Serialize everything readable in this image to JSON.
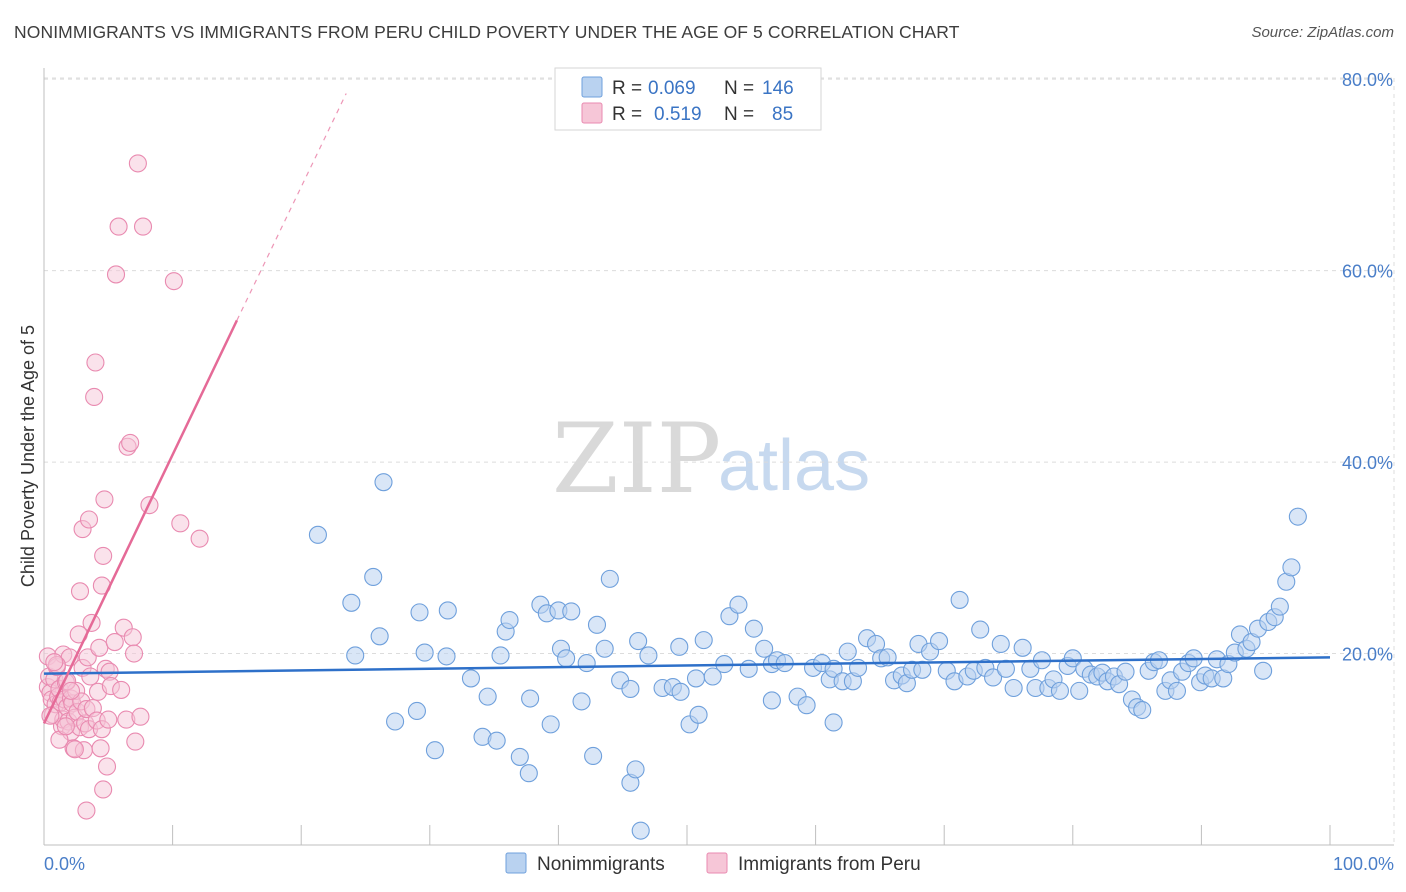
{
  "title": "NONIMMIGRANTS VS IMMIGRANTS FROM PERU CHILD POVERTY UNDER THE AGE OF 5 CORRELATION CHART",
  "source": "Source: ZipAtlas.com",
  "watermark": {
    "zip": "ZIP",
    "atlas": "atlas"
  },
  "colors": {
    "nonimmigrants": "#6fa0dc",
    "nonimmigrants_fill": "#b9d2f0",
    "peru": "#e98ab0",
    "peru_fill": "#f6c6d7",
    "blue_line": "#2e70c9",
    "pink_line": "#e56a97",
    "tick": "#4a7ec8"
  },
  "legend": {
    "r_label": "R =",
    "n_label": "N =",
    "series": [
      {
        "r": "0.069",
        "n": "146"
      },
      {
        "r": "0.519",
        "n": "85"
      }
    ]
  },
  "chart_data": {
    "type": "scatter",
    "title": "NONIMMIGRANTS VS IMMIGRANTS FROM PERU CHILD POVERTY UNDER THE AGE OF 5 CORRELATION CHART",
    "xlabel": "",
    "ylabel": "Child Poverty Under the Age of 5",
    "xlim": [
      0,
      100
    ],
    "ylim": [
      0,
      82
    ],
    "x_tick_labels": [
      "0.0%",
      "100.0%"
    ],
    "y_tick_labels": [
      "20.0%",
      "40.0%",
      "60.0%",
      "80.0%"
    ],
    "y_ticks": [
      20,
      40,
      60,
      80
    ],
    "grid": true,
    "legend_position": "top-center",
    "series": [
      {
        "name": "Nonimmigrants",
        "trend": {
          "x": [
            0,
            100
          ],
          "y": [
            17.9,
            19.6
          ]
        },
        "points": [
          [
            21.3,
            32.4
          ],
          [
            26.4,
            37.9
          ],
          [
            23.9,
            25.3
          ],
          [
            25.6,
            28.0
          ],
          [
            24.2,
            19.8
          ],
          [
            26.1,
            21.8
          ],
          [
            27.3,
            12.9
          ],
          [
            29.2,
            24.3
          ],
          [
            29.6,
            20.1
          ],
          [
            29.0,
            14.0
          ],
          [
            30.4,
            9.9
          ],
          [
            31.3,
            19.7
          ],
          [
            31.4,
            24.5
          ],
          [
            33.2,
            17.4
          ],
          [
            34.1,
            11.3
          ],
          [
            34.5,
            15.5
          ],
          [
            35.2,
            10.9
          ],
          [
            35.5,
            19.8
          ],
          [
            35.9,
            22.3
          ],
          [
            36.2,
            23.5
          ],
          [
            37.0,
            9.2
          ],
          [
            37.8,
            15.3
          ],
          [
            37.7,
            7.5
          ],
          [
            38.6,
            25.1
          ],
          [
            39.1,
            24.2
          ],
          [
            39.4,
            12.6
          ],
          [
            40.0,
            24.5
          ],
          [
            40.2,
            20.5
          ],
          [
            40.6,
            19.5
          ],
          [
            41.0,
            24.4
          ],
          [
            41.8,
            15.0
          ],
          [
            42.2,
            19.0
          ],
          [
            42.7,
            9.3
          ],
          [
            43.0,
            23.0
          ],
          [
            43.6,
            20.5
          ],
          [
            44.0,
            27.8
          ],
          [
            44.8,
            17.2
          ],
          [
            45.6,
            6.5
          ],
          [
            45.6,
            16.3
          ],
          [
            46.0,
            7.9
          ],
          [
            46.2,
            21.3
          ],
          [
            47.0,
            19.8
          ],
          [
            48.1,
            16.4
          ],
          [
            48.9,
            16.5
          ],
          [
            49.4,
            20.7
          ],
          [
            49.5,
            16.0
          ],
          [
            50.2,
            12.6
          ],
          [
            50.7,
            17.4
          ],
          [
            50.9,
            13.6
          ],
          [
            51.3,
            21.4
          ],
          [
            52.0,
            17.6
          ],
          [
            52.9,
            18.9
          ],
          [
            53.3,
            23.9
          ],
          [
            54.0,
            25.1
          ],
          [
            54.8,
            18.4
          ],
          [
            55.2,
            22.6
          ],
          [
            56.0,
            20.5
          ],
          [
            56.6,
            18.9
          ],
          [
            56.6,
            15.1
          ],
          [
            57.0,
            19.3
          ],
          [
            57.6,
            19.0
          ],
          [
            58.6,
            15.5
          ],
          [
            59.3,
            14.6
          ],
          [
            59.8,
            18.5
          ],
          [
            60.5,
            19.0
          ],
          [
            61.1,
            17.3
          ],
          [
            61.4,
            18.4
          ],
          [
            62.1,
            17.1
          ],
          [
            62.5,
            20.2
          ],
          [
            62.9,
            17.1
          ],
          [
            63.3,
            18.5
          ],
          [
            64.0,
            21.6
          ],
          [
            64.7,
            21.0
          ],
          [
            65.1,
            19.5
          ],
          [
            65.6,
            19.6
          ],
          [
            66.1,
            17.2
          ],
          [
            66.7,
            17.7
          ],
          [
            67.1,
            16.9
          ],
          [
            67.5,
            18.3
          ],
          [
            68.0,
            21.0
          ],
          [
            68.3,
            18.3
          ],
          [
            68.9,
            20.2
          ],
          [
            69.6,
            21.3
          ],
          [
            70.2,
            18.2
          ],
          [
            70.8,
            17.1
          ],
          [
            71.2,
            25.6
          ],
          [
            71.8,
            17.6
          ],
          [
            72.3,
            18.2
          ],
          [
            72.8,
            22.5
          ],
          [
            73.2,
            18.5
          ],
          [
            73.8,
            17.5
          ],
          [
            74.4,
            21.0
          ],
          [
            74.8,
            18.4
          ],
          [
            75.4,
            16.4
          ],
          [
            76.1,
            20.6
          ],
          [
            76.7,
            18.4
          ],
          [
            77.1,
            16.4
          ],
          [
            77.6,
            19.3
          ],
          [
            78.1,
            16.4
          ],
          [
            78.5,
            17.3
          ],
          [
            79.0,
            16.1
          ],
          [
            79.6,
            18.7
          ],
          [
            80.0,
            19.5
          ],
          [
            80.5,
            16.1
          ],
          [
            80.9,
            18.4
          ],
          [
            81.4,
            17.8
          ],
          [
            81.9,
            17.6
          ],
          [
            82.3,
            18.0
          ],
          [
            82.7,
            17.1
          ],
          [
            83.2,
            17.6
          ],
          [
            83.6,
            16.8
          ],
          [
            84.1,
            18.1
          ],
          [
            84.6,
            15.2
          ],
          [
            85.0,
            14.4
          ],
          [
            85.4,
            14.1
          ],
          [
            85.9,
            18.2
          ],
          [
            86.3,
            19.1
          ],
          [
            86.7,
            19.3
          ],
          [
            87.2,
            16.1
          ],
          [
            87.6,
            17.2
          ],
          [
            88.1,
            16.1
          ],
          [
            88.5,
            18.1
          ],
          [
            89.0,
            19.0
          ],
          [
            89.4,
            19.5
          ],
          [
            89.9,
            17.0
          ],
          [
            90.3,
            17.7
          ],
          [
            90.8,
            17.4
          ],
          [
            91.2,
            19.4
          ],
          [
            91.7,
            17.4
          ],
          [
            92.1,
            18.9
          ],
          [
            92.6,
            20.1
          ],
          [
            93.0,
            22.0
          ],
          [
            93.5,
            20.5
          ],
          [
            93.9,
            21.2
          ],
          [
            94.4,
            22.6
          ],
          [
            94.8,
            18.2
          ],
          [
            95.2,
            23.3
          ],
          [
            95.7,
            23.8
          ],
          [
            96.1,
            24.9
          ],
          [
            96.6,
            27.5
          ],
          [
            97.0,
            29.0
          ],
          [
            97.5,
            34.3
          ],
          [
            61.4,
            12.8
          ],
          [
            46.4,
            1.5
          ]
        ]
      },
      {
        "name": "Immigrants from Peru",
        "trend": {
          "x": [
            0,
            15
          ],
          "y": [
            12.7,
            54.8
          ]
        },
        "trend_dashed": {
          "x": [
            15,
            23.5
          ],
          "y": [
            54.8,
            78.5
          ]
        },
        "points": [
          [
            0.3,
            19.7
          ],
          [
            0.3,
            16.5
          ],
          [
            0.4,
            17.6
          ],
          [
            0.5,
            15.9
          ],
          [
            0.6,
            15.2
          ],
          [
            0.7,
            13.6
          ],
          [
            0.8,
            17.3
          ],
          [
            0.9,
            14.7
          ],
          [
            1.0,
            18.6
          ],
          [
            1.1,
            15.5
          ],
          [
            1.2,
            16.3
          ],
          [
            1.3,
            14.9
          ],
          [
            1.4,
            12.4
          ],
          [
            1.5,
            13.1
          ],
          [
            1.5,
            19.9
          ],
          [
            1.6,
            15.2
          ],
          [
            1.7,
            17.0
          ],
          [
            1.8,
            14.4
          ],
          [
            1.9,
            12.9
          ],
          [
            2.0,
            19.6
          ],
          [
            2.1,
            15.3
          ],
          [
            2.1,
            11.8
          ],
          [
            2.2,
            14.8
          ],
          [
            2.3,
            10.1
          ],
          [
            2.4,
            13.3
          ],
          [
            2.5,
            16.1
          ],
          [
            2.6,
            13.9
          ],
          [
            2.7,
            22.0
          ],
          [
            2.8,
            12.3
          ],
          [
            2.8,
            26.5
          ],
          [
            2.9,
            15.0
          ],
          [
            3.0,
            33.0
          ],
          [
            3.0,
            18.5
          ],
          [
            3.1,
            9.9
          ],
          [
            3.2,
            12.7
          ],
          [
            3.3,
            3.6
          ],
          [
            3.3,
            14.2
          ],
          [
            3.4,
            19.6
          ],
          [
            3.5,
            34.0
          ],
          [
            3.5,
            12.1
          ],
          [
            3.6,
            17.6
          ],
          [
            3.7,
            23.2
          ],
          [
            3.8,
            14.3
          ],
          [
            3.9,
            46.8
          ],
          [
            4.0,
            50.4
          ],
          [
            4.1,
            13.0
          ],
          [
            4.2,
            16.0
          ],
          [
            4.3,
            20.6
          ],
          [
            4.4,
            10.1
          ],
          [
            4.5,
            12.1
          ],
          [
            4.5,
            27.1
          ],
          [
            4.6,
            30.2
          ],
          [
            4.6,
            5.8
          ],
          [
            4.7,
            36.1
          ],
          [
            4.8,
            18.4
          ],
          [
            4.9,
            8.2
          ],
          [
            5.0,
            13.1
          ],
          [
            5.1,
            18.1
          ],
          [
            5.2,
            16.6
          ],
          [
            5.5,
            21.2
          ],
          [
            5.6,
            59.6
          ],
          [
            5.8,
            64.6
          ],
          [
            6.0,
            16.2
          ],
          [
            6.2,
            22.7
          ],
          [
            6.4,
            13.1
          ],
          [
            6.5,
            41.6
          ],
          [
            6.7,
            42.0
          ],
          [
            6.9,
            21.7
          ],
          [
            7.0,
            20.0
          ],
          [
            7.1,
            10.8
          ],
          [
            7.3,
            71.2
          ],
          [
            7.5,
            13.4
          ],
          [
            7.7,
            64.6
          ],
          [
            8.2,
            35.5
          ],
          [
            10.1,
            58.9
          ],
          [
            10.6,
            33.6
          ],
          [
            12.1,
            32.0
          ],
          [
            1.2,
            11.0
          ],
          [
            2.4,
            10.0
          ],
          [
            0.5,
            13.5
          ],
          [
            1.0,
            18.8
          ],
          [
            1.8,
            17.1
          ],
          [
            1.7,
            12.4
          ],
          [
            2.1,
            16.1
          ],
          [
            0.8,
            19.1
          ]
        ]
      }
    ]
  },
  "bottom_legend": [
    {
      "label": "Nonimmigrants"
    },
    {
      "label": "Immigrants from Peru"
    }
  ]
}
